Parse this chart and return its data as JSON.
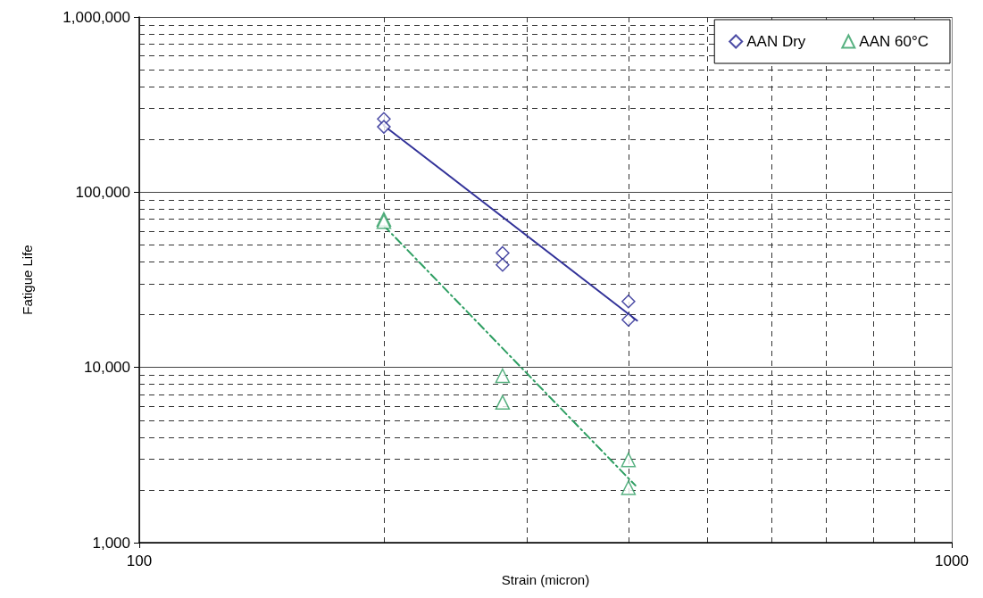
{
  "chart_data": {
    "type": "scatter",
    "xlabel": "Strain (micron)",
    "ylabel": "Fatigue Life",
    "log": "xy",
    "xlim": [
      100,
      1000
    ],
    "xticks": [
      100,
      1000
    ],
    "ylim": [
      1000,
      1000000
    ],
    "yticks": [
      {
        "value": 1000,
        "label": "1,000"
      },
      {
        "value": 10000,
        "label": "10,000"
      },
      {
        "value": 100000,
        "label": "100,000"
      },
      {
        "value": 1000000,
        "label": "1,000,000"
      }
    ],
    "grid": true,
    "legend": "top right",
    "series": [
      {
        "name": "AAN Dry",
        "marker": "diamond",
        "color": "#1f1f8f",
        "x": [
          200,
          200,
          280,
          280,
          400,
          400
        ],
        "values": [
          262000,
          236000,
          45000,
          38500,
          23800,
          18700
        ]
      },
      {
        "name": "AAN 60°C",
        "marker": "triangle",
        "color": "#2e9e62",
        "x": [
          200,
          200,
          280,
          280,
          400,
          400
        ],
        "values": [
          70000,
          68000,
          8960,
          6320,
          2970,
          2060
        ]
      },
      {
        "type": "line",
        "color": "#333399",
        "line_style": "solid",
        "marker": "none",
        "x": [
          200,
          410
        ],
        "values": [
          240000,
          18500
        ]
      },
      {
        "type": "line",
        "color": "#2e9e62",
        "line_style": "dashdot",
        "marker": "none",
        "x": [
          200,
          408
        ],
        "values": [
          64400,
          2120
        ]
      }
    ]
  }
}
